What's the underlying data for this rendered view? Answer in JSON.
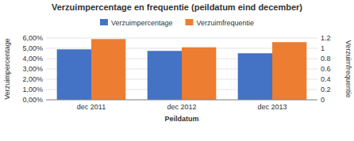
{
  "chart_data": {
    "type": "bar",
    "title": "Verzuimpercentage en frequentie (peildatum eind december)",
    "categories": [
      "dec 2011",
      "dec 2012",
      "dec 2013"
    ],
    "series": [
      {
        "name": "Verzuimpercentage",
        "color": "#4472C4",
        "values": [
          0.049,
          0.0475,
          0.0452
        ]
      },
      {
        "name": "Verzuimfrequentie",
        "color": "#ED7D31",
        "values": [
          1.18,
          1.02,
          1.12
        ],
        "axis": "y2"
      }
    ],
    "xlabel": "Peildatum",
    "ylabel": "Verzuimpercentage",
    "y2label": "Verzuimfrequentie",
    "ylim": [
      0,
      0.06
    ],
    "yticks": [
      {
        "value": 0.0,
        "label": "0,00%"
      },
      {
        "value": 0.01,
        "label": "1,00%"
      },
      {
        "value": 0.02,
        "label": "2,00%"
      },
      {
        "value": 0.03,
        "label": "3,00%"
      },
      {
        "value": 0.04,
        "label": "4,00%"
      },
      {
        "value": 0.05,
        "label": "5,00%"
      },
      {
        "value": 0.06,
        "label": "6,00%"
      }
    ],
    "y2lim": [
      0,
      1.2
    ],
    "y2ticks": [
      0,
      0.2,
      0.4,
      0.6,
      0.8,
      1,
      1.2
    ],
    "grid": true,
    "legend": "top"
  }
}
